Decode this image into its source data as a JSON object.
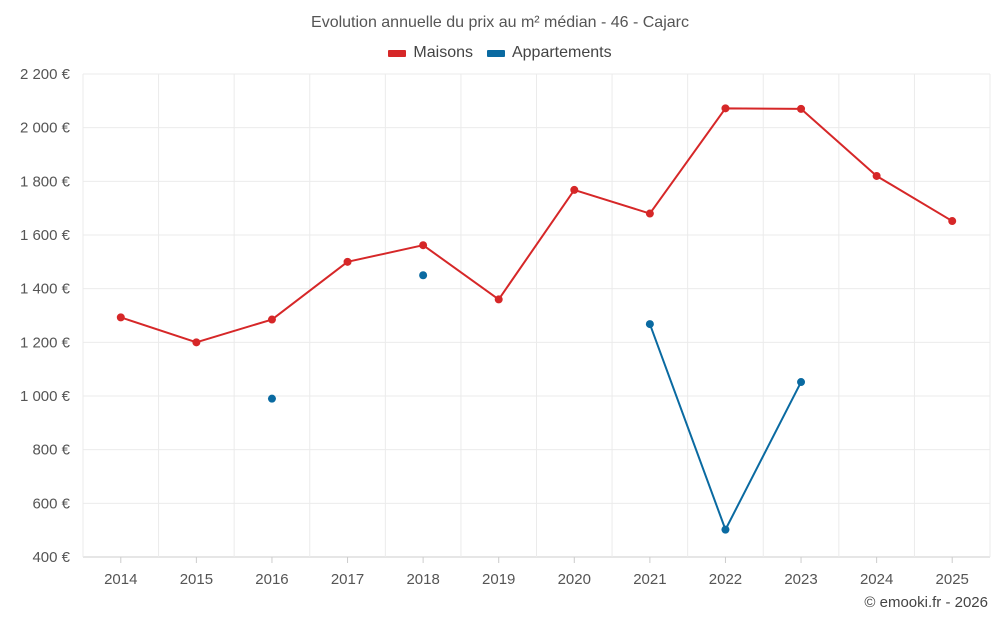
{
  "chart_data": {
    "type": "line",
    "title": "Evolution annuelle du prix au m² médian - 46 - Cajarc",
    "categories": [
      "2014",
      "2015",
      "2016",
      "2017",
      "2018",
      "2019",
      "2020",
      "2021",
      "2022",
      "2023",
      "2024",
      "2025"
    ],
    "yticks": [
      400,
      600,
      800,
      1000,
      1200,
      1400,
      1600,
      1800,
      2000,
      2200
    ],
    "ytick_labels": [
      "400 €",
      "600 €",
      "800 €",
      "1 000 €",
      "1 200 €",
      "1 400 €",
      "1 600 €",
      "1 800 €",
      "2 000 €",
      "2 200 €"
    ],
    "ylim": [
      400,
      2200
    ],
    "grid": true,
    "legend_position": "top-center",
    "series": [
      {
        "name": "Maisons",
        "color": "#d62728",
        "values": [
          1293,
          1200,
          1285,
          1500,
          1562,
          1360,
          1768,
          1680,
          2072,
          2070,
          1820,
          1652
        ]
      },
      {
        "name": "Appartements",
        "color": "#0a6aa1",
        "values": [
          null,
          null,
          990,
          null,
          1450,
          null,
          null,
          1268,
          502,
          1052,
          null,
          null
        ]
      }
    ],
    "credit": "© emooki.fr - 2026"
  }
}
